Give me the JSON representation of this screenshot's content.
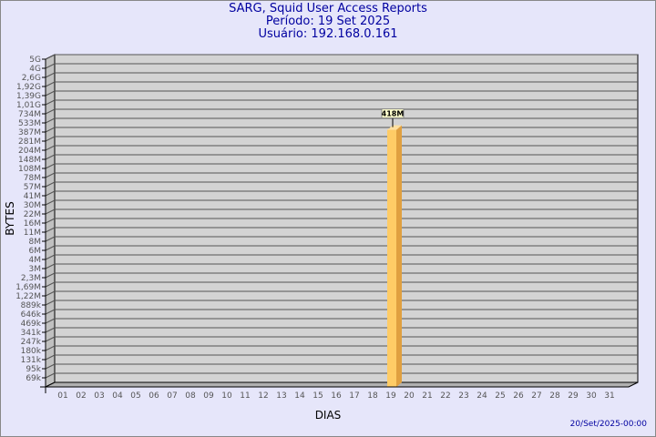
{
  "title": "SARG, Squid User Access Reports",
  "period": "Período: 19 Set 2025",
  "user": "Usuário: 192.168.0.161",
  "footer": "20/Set/2025-00:00",
  "chart_data": {
    "type": "bar",
    "xlabel": "DIAS",
    "ylabel": "BYTES",
    "y_scale": "log",
    "grid": true,
    "categories": [
      "01",
      "02",
      "03",
      "04",
      "05",
      "06",
      "07",
      "08",
      "09",
      "10",
      "11",
      "12",
      "13",
      "14",
      "15",
      "16",
      "17",
      "18",
      "19",
      "20",
      "21",
      "22",
      "23",
      "24",
      "25",
      "26",
      "27",
      "28",
      "29",
      "30",
      "31"
    ],
    "y_ticks": [
      "5G",
      "4G",
      "2,6G",
      "1,92G",
      "1,39G",
      "1,01G",
      "734M",
      "533M",
      "387M",
      "281M",
      "204M",
      "148M",
      "108M",
      "78M",
      "57M",
      "41M",
      "30M",
      "22M",
      "16M",
      "11M",
      "8M",
      "6M",
      "4M",
      "3M",
      "2,3M",
      "1,69M",
      "1,22M",
      "889k",
      "646k",
      "469k",
      "341k",
      "247k",
      "180k",
      "131k",
      "95k",
      "69k"
    ],
    "y_tick_values": [
      5000000000.0,
      4000000000.0,
      2600000000.0,
      1920000000.0,
      1390000000.0,
      1010000000.0,
      734000000.0,
      533000000.0,
      387000000.0,
      281000000.0,
      204000000.0,
      148000000.0,
      108000000.0,
      78000000.0,
      57000000.0,
      41000000.0,
      30000000.0,
      22000000.0,
      16000000.0,
      11000000.0,
      8000000.0,
      6000000.0,
      4000000.0,
      3000000.0,
      2300000.0,
      1690000.0,
      1220000.0,
      889000.0,
      646000.0,
      469000.0,
      341000.0,
      247000.0,
      180000.0,
      131000.0,
      95000.0,
      69000.0
    ],
    "bars": [
      {
        "category": "19",
        "value": 418000000,
        "label": "418M"
      }
    ],
    "colors": {
      "bar": "#ffcc66",
      "bar_side": "#e0a040",
      "wall": "#d3d3d3"
    }
  }
}
